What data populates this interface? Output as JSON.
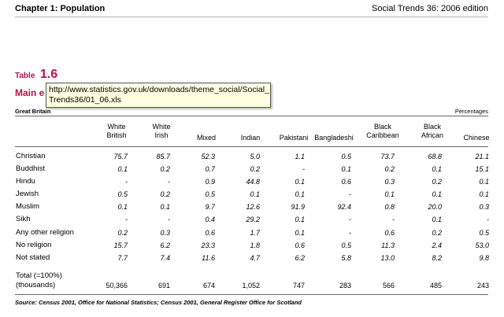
{
  "header": {
    "chapter": "Chapter 1: Population",
    "edition_bold": "Social Trends 36:",
    "edition_rest": " 2006 edition"
  },
  "table": {
    "label": "Table",
    "number": "1.6",
    "title_visible": "Main e",
    "region": "Great Britain",
    "units": "Percentages",
    "columns": [
      [
        "White",
        "British"
      ],
      [
        "White",
        "Irish"
      ],
      [
        "Mixed"
      ],
      [
        "Indian"
      ],
      [
        "Pakistani"
      ],
      [
        "Bangladeshi"
      ],
      [
        "Black",
        "Caribbean"
      ],
      [
        "Black",
        "African"
      ],
      [
        "Chinese"
      ]
    ],
    "rows": [
      {
        "label": "Christian",
        "values": [
          "75.7",
          "85.7",
          "52.3",
          "5.0",
          "1.1",
          "0.5",
          "73.7",
          "68.8",
          "21.1"
        ]
      },
      {
        "label": "Buddhist",
        "values": [
          "0.1",
          "0.2",
          "0.7",
          "0.2",
          "-",
          "0.1",
          "0.2",
          "0.1",
          "15.1"
        ]
      },
      {
        "label": "Hindu",
        "values": [
          "-",
          "-",
          "0.9",
          "44.8",
          "0.1",
          "0.6",
          "0.3",
          "0.2",
          "0.1"
        ]
      },
      {
        "label": "Jewish",
        "values": [
          "0.5",
          "0.2",
          "0.5",
          "0.1",
          "0.1",
          "-",
          "0.1",
          "0.1",
          "0.1"
        ]
      },
      {
        "label": "Muslim",
        "values": [
          "0.1",
          "0.1",
          "9.7",
          "12.6",
          "91.9",
          "92.4",
          "0.8",
          "20.0",
          "0.3"
        ]
      },
      {
        "label": "Sikh",
        "values": [
          "-",
          "-",
          "0.4",
          "29.2",
          "0.1",
          "-",
          "-",
          "0.1",
          "-"
        ]
      },
      {
        "label": "Any other religion",
        "values": [
          "0.2",
          "0.3",
          "0.6",
          "1.7",
          "0.1",
          "-",
          "0.6",
          "0.2",
          "0.5"
        ]
      },
      {
        "label": "No religion",
        "values": [
          "15.7",
          "6.2",
          "23.3",
          "1.8",
          "0.6",
          "0.5",
          "11.3",
          "2.4",
          "53.0"
        ]
      },
      {
        "label": "Not stated",
        "values": [
          "7.7",
          "7.4",
          "11.6",
          "4.7",
          "6.2",
          "5.8",
          "13.0",
          "8.2",
          "9.8"
        ]
      }
    ],
    "total_label_1": "Total (=100%)",
    "total_label_2": "(thousands)",
    "totals": [
      "50,366",
      "691",
      "674",
      "1,052",
      "747",
      "283",
      "566",
      "485",
      "243"
    ]
  },
  "tooltip": {
    "line1": "http://www.statistics.gov.uk/downloads/theme_social/Social_",
    "line2": "Trends36/01_06.xls"
  },
  "source": "Source: Census 2001, Office for National Statistics; Census 2001, General Register Office for Scotland",
  "colors": {
    "accent": "#c20d4e",
    "tooltip_bg": "#ffffe1"
  }
}
